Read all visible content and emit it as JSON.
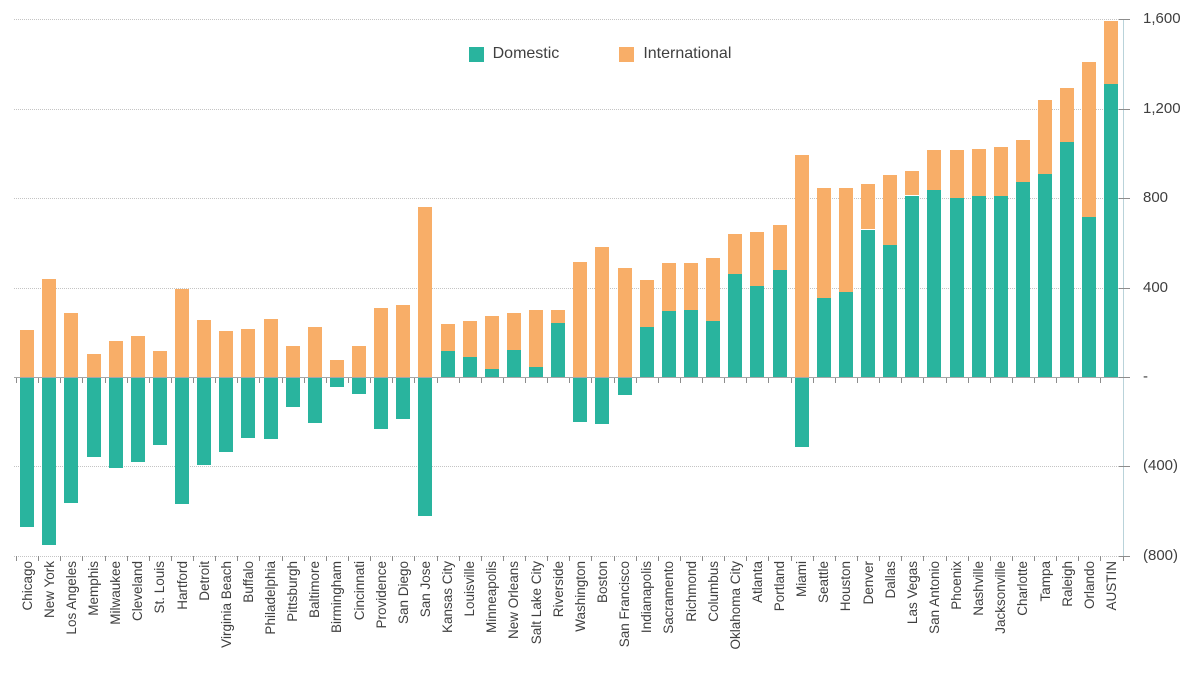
{
  "legend": {
    "domestic_label": "Domestic",
    "international_label": "International"
  },
  "colors": {
    "domestic": "#29b49e",
    "international": "#f8ae68",
    "gridline": "#c4c4c4",
    "zero_line": "#a6a6a6",
    "axis_line": "#b9d3da",
    "tick": "#8c8c8c",
    "text": "#3f3f3f"
  },
  "y_axis": {
    "tick_labels": [
      "1,600",
      "1,200",
      "800",
      "400",
      "-",
      "(400)",
      "(800)"
    ],
    "tick_values": [
      1600,
      1200,
      800,
      400,
      0,
      -400,
      -800
    ]
  },
  "chart_data": {
    "type": "bar",
    "stacked": true,
    "title": "",
    "xlabel": "",
    "ylabel": "",
    "ylim": [
      -800,
      1600
    ],
    "grid": "horizontal-dotted",
    "legend_position": "top-center",
    "x_label_rotation": -90,
    "categories": [
      "Chicago",
      "New York",
      "Los Angeles",
      "Memphis",
      "Milwaukee",
      "Cleveland",
      "St. Louis",
      "Hartford",
      "Detroit",
      "Virginia Beach",
      "Buffalo",
      "Philadelphia",
      "Pittsburgh",
      "Baltimore",
      "Birmingham",
      "Cincinnati",
      "Providence",
      "San Diego",
      "San Jose",
      "Kansas City",
      "Louisville",
      "Minneapolis",
      "New Orleans",
      "Salt Lake City",
      "Riverside",
      "Washington",
      "Boston",
      "San Francisco",
      "Indianapolis",
      "Sacramento",
      "Richmond",
      "Columbus",
      "Oklahoma City",
      "Atlanta",
      "Portland",
      "Miami",
      "Seattle",
      "Houston",
      "Denver",
      "Dallas",
      "Las Vegas",
      "San Antonio",
      "Phoenix",
      "Nashville",
      "Jacksonville",
      "Charlotte",
      "Tampa",
      "Raleigh",
      "Orlando",
      "AUSTIN"
    ],
    "series": [
      {
        "name": "Domestic",
        "color": "#29b49e",
        "values": [
          -670,
          -750,
          -560,
          -355,
          -405,
          -380,
          -300,
          -565,
          -392,
          -335,
          -272,
          -277,
          -133,
          -204,
          -44,
          -75,
          -229,
          -186,
          -620,
          118,
          90,
          34,
          122,
          46,
          240,
          -200,
          -208,
          -79,
          222,
          294,
          298,
          250,
          460,
          408,
          480,
          -310,
          352,
          381,
          660,
          590,
          812,
          835,
          802,
          812,
          810,
          872,
          910,
          1052,
          715,
          1310
        ]
      },
      {
        "name": "International",
        "color": "#f8ae68",
        "values": [
          210,
          440,
          285,
          105,
          160,
          183,
          115,
          395,
          255,
          205,
          215,
          258,
          140,
          225,
          75,
          138,
          310,
          322,
          760,
          120,
          162,
          238,
          166,
          252,
          62,
          515,
          580,
          488,
          212,
          218,
          214,
          282,
          180,
          240,
          200,
          995,
          493,
          464,
          205,
          312,
          110,
          180,
          216,
          207,
          218,
          188,
          330,
          240,
          695,
          283
        ]
      }
    ]
  }
}
